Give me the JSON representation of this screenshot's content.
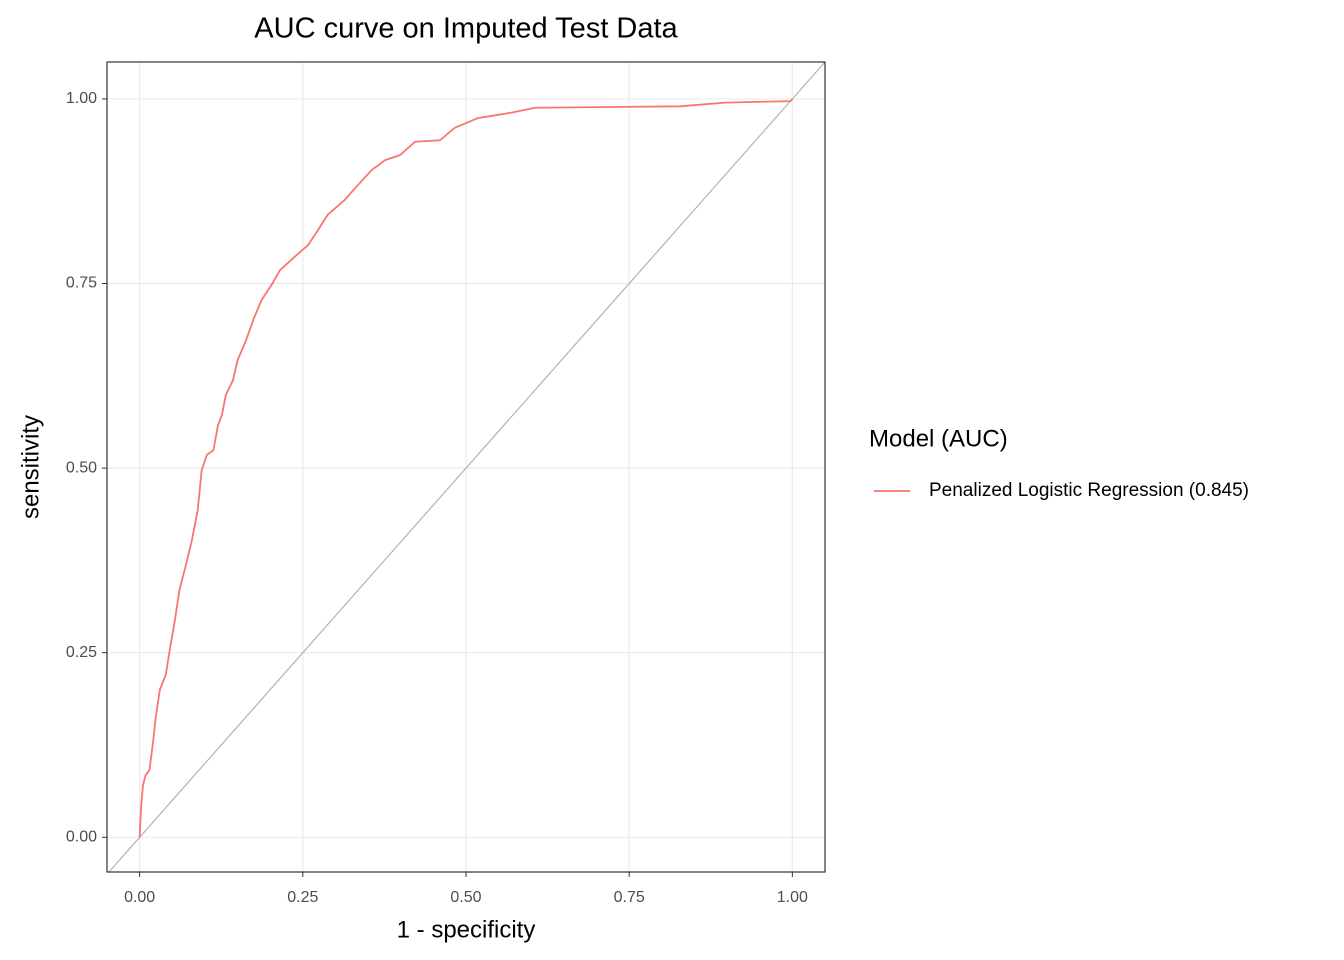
{
  "chart_data": {
    "type": "line",
    "title": "AUC curve on Imputed Test Data",
    "x_label": "1 - specificity",
    "y_label": "sensitivity",
    "legend_title": "Model (AUC)",
    "legend_position": "right",
    "grid": true,
    "xlim": [
      -0.05,
      1.05
    ],
    "ylim": [
      -0.047,
      1.05
    ],
    "xticks": [
      {
        "value": 0,
        "label": "0.00"
      },
      {
        "value": 0.25,
        "label": "0.25"
      },
      {
        "value": 0.5,
        "label": "0.50"
      },
      {
        "value": 0.75,
        "label": "0.75"
      },
      {
        "value": 1,
        "label": "1.00"
      }
    ],
    "yticks": [
      {
        "value": 0,
        "label": "0.00"
      },
      {
        "value": 0.25,
        "label": "0.25"
      },
      {
        "value": 0.5,
        "label": "0.50"
      },
      {
        "value": 0.75,
        "label": "0.75"
      },
      {
        "value": 1,
        "label": "1.00"
      }
    ],
    "reference_line_color": "#b3b3b3",
    "x": [
      0,
      0.002,
      0.005,
      0.009,
      0.015,
      0.02,
      0.025,
      0.031,
      0.04,
      0.046,
      0.054,
      0.061,
      0.071,
      0.08,
      0.089,
      0.095,
      0.103,
      0.113,
      0.12,
      0.126,
      0.132,
      0.143,
      0.15,
      0.163,
      0.175,
      0.187,
      0.202,
      0.215,
      0.236,
      0.258,
      0.273,
      0.288,
      0.314,
      0.334,
      0.356,
      0.376,
      0.399,
      0.422,
      0.46,
      0.483,
      0.518,
      0.567,
      0.606,
      0.828,
      0.897,
      0.997,
      1
    ],
    "series": [
      {
        "name": "Penalized Logistic Regression (0.845)",
        "color": "#F8766D",
        "values": [
          0,
          0.037,
          0.07,
          0.084,
          0.091,
          0.125,
          0.165,
          0.2,
          0.22,
          0.253,
          0.294,
          0.335,
          0.369,
          0.402,
          0.443,
          0.497,
          0.518,
          0.524,
          0.558,
          0.572,
          0.599,
          0.619,
          0.646,
          0.673,
          0.703,
          0.728,
          0.748,
          0.768,
          0.785,
          0.802,
          0.822,
          0.843,
          0.863,
          0.883,
          0.904,
          0.917,
          0.924,
          0.942,
          0.944,
          0.961,
          0.974,
          0.981,
          0.988,
          0.99,
          0.995,
          0.997,
          1
        ]
      }
    ]
  }
}
